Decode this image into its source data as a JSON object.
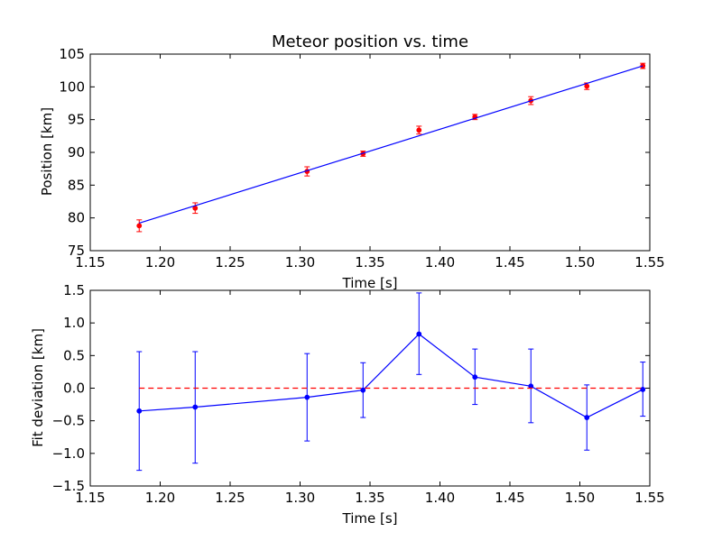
{
  "chart_data": [
    {
      "type": "scatter",
      "title": "Meteor position vs. time",
      "xlabel": "Time [s]",
      "ylabel": "Position [km]",
      "xlim": [
        1.15,
        1.55
      ],
      "ylim": [
        75,
        105
      ],
      "x_ticks": [
        "1.15",
        "1.20",
        "1.25",
        "1.30",
        "1.35",
        "1.40",
        "1.45",
        "1.50",
        "1.55"
      ],
      "y_ticks": [
        "75",
        "80",
        "85",
        "90",
        "95",
        "100",
        "105"
      ],
      "series": [
        {
          "style": "markers-with-errorbars",
          "color": "#ff0000",
          "x": [
            1.185,
            1.225,
            1.305,
            1.345,
            1.385,
            1.425,
            1.465,
            1.505,
            1.545
          ],
          "y": [
            78.8,
            81.5,
            87.1,
            89.8,
            93.4,
            95.4,
            97.9,
            100.1,
            103.2
          ],
          "yerr": [
            0.9,
            0.8,
            0.7,
            0.4,
            0.6,
            0.4,
            0.6,
            0.5,
            0.4
          ]
        },
        {
          "style": "line",
          "color": "#0000ff",
          "x": [
            1.185,
            1.545
          ],
          "y": [
            79.2,
            103.2
          ]
        }
      ],
      "grid": false
    },
    {
      "type": "line",
      "xlabel": "Time [s]",
      "ylabel": "Fit deviation [km]",
      "xlim": [
        1.15,
        1.55
      ],
      "ylim": [
        -1.5,
        1.5
      ],
      "x_ticks": [
        "1.15",
        "1.20",
        "1.25",
        "1.30",
        "1.35",
        "1.40",
        "1.45",
        "1.50",
        "1.55"
      ],
      "y_ticks": [
        "−1.5",
        "−1.0",
        "−0.5",
        "0.0",
        "0.5",
        "1.0",
        "1.5"
      ],
      "series": [
        {
          "style": "line-with-errorbars",
          "color": "#0000ff",
          "x": [
            1.185,
            1.225,
            1.305,
            1.345,
            1.385,
            1.425,
            1.465,
            1.505,
            1.545
          ],
          "y": [
            -0.35,
            -0.29,
            -0.14,
            -0.03,
            0.83,
            0.17,
            0.03,
            -0.45,
            -0.02
          ],
          "yerr_low": [
            0.91,
            0.86,
            0.67,
            0.42,
            0.62,
            0.42,
            0.56,
            0.5,
            0.41
          ],
          "yerr_high": [
            0.91,
            0.85,
            0.67,
            0.42,
            0.63,
            0.43,
            0.57,
            0.5,
            0.42
          ]
        },
        {
          "style": "dashed",
          "color": "#ff0000",
          "x": [
            1.185,
            1.545
          ],
          "y": [
            0.0,
            0.0
          ]
        }
      ],
      "grid": false
    }
  ]
}
